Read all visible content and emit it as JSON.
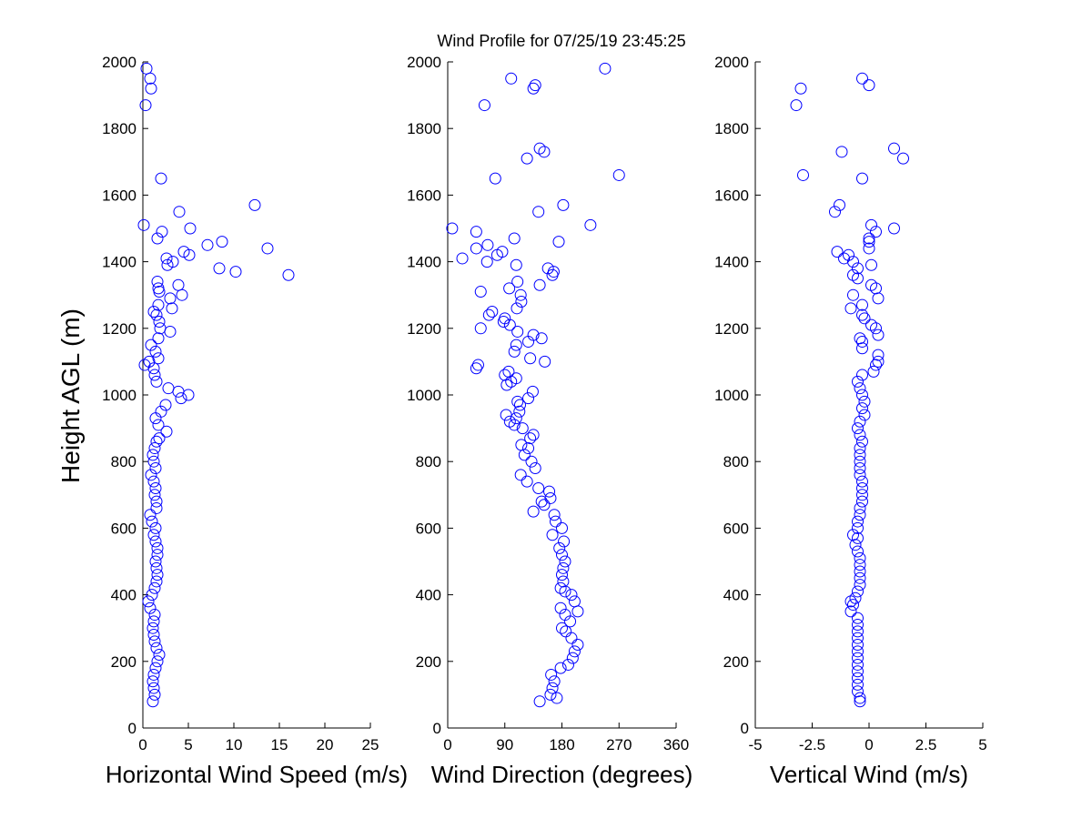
{
  "title": "Wind Profile for  07/25/19 23:45:25",
  "ylabel": "Height AGL (m)",
  "colors": {
    "marker": "#0000ff",
    "axis": "#000000",
    "background": "#ffffff"
  },
  "chart_data": [
    {
      "type": "scatter",
      "xlabel": "Horizontal Wind Speed (m/s)",
      "ylabel": "Height AGL (m)",
      "xlim": [
        0,
        25
      ],
      "ylim": [
        0,
        2000
      ],
      "xticks": [
        0,
        5,
        10,
        15,
        20,
        25
      ],
      "xtick_labels": [
        "0",
        "5",
        "10",
        "15",
        "20",
        "25"
      ],
      "yticks": [
        0,
        200,
        400,
        600,
        800,
        1000,
        1200,
        1400,
        1600,
        1800,
        2000
      ],
      "ytick_labels": [
        "0",
        "200",
        "400",
        "600",
        "800",
        "1000",
        "1200",
        "1400",
        "1600",
        "1800",
        "2000"
      ],
      "marker": "open circle",
      "grid": false,
      "points": [
        [
          1.1,
          80
        ],
        [
          1.3,
          100
        ],
        [
          1.2,
          120
        ],
        [
          1.1,
          140
        ],
        [
          1.2,
          160
        ],
        [
          1.4,
          180
        ],
        [
          1.6,
          200
        ],
        [
          1.8,
          220
        ],
        [
          1.5,
          240
        ],
        [
          1.3,
          260
        ],
        [
          1.2,
          280
        ],
        [
          1.1,
          300
        ],
        [
          1.2,
          320
        ],
        [
          1.3,
          340
        ],
        [
          0.8,
          360
        ],
        [
          0.6,
          380
        ],
        [
          1.0,
          400
        ],
        [
          1.3,
          420
        ],
        [
          1.5,
          440
        ],
        [
          1.6,
          460
        ],
        [
          1.5,
          480
        ],
        [
          1.4,
          500
        ],
        [
          1.6,
          520
        ],
        [
          1.6,
          540
        ],
        [
          1.4,
          560
        ],
        [
          1.2,
          580
        ],
        [
          1.4,
          600
        ],
        [
          1.0,
          620
        ],
        [
          0.8,
          640
        ],
        [
          1.5,
          660
        ],
        [
          1.5,
          680
        ],
        [
          1.3,
          700
        ],
        [
          1.4,
          720
        ],
        [
          1.2,
          740
        ],
        [
          0.9,
          760
        ],
        [
          1.4,
          780
        ],
        [
          1.2,
          800
        ],
        [
          1.1,
          820
        ],
        [
          1.3,
          840
        ],
        [
          1.5,
          860
        ],
        [
          1.8,
          870
        ],
        [
          2.6,
          890
        ],
        [
          1.7,
          910
        ],
        [
          1.4,
          930
        ],
        [
          2.0,
          950
        ],
        [
          2.5,
          970
        ],
        [
          4.2,
          990
        ],
        [
          5.0,
          1000
        ],
        [
          3.9,
          1010
        ],
        [
          2.8,
          1020
        ],
        [
          1.5,
          1040
        ],
        [
          1.3,
          1060
        ],
        [
          1.2,
          1080
        ],
        [
          0.2,
          1090
        ],
        [
          0.7,
          1100
        ],
        [
          1.7,
          1110
        ],
        [
          1.4,
          1130
        ],
        [
          0.9,
          1150
        ],
        [
          1.7,
          1170
        ],
        [
          3.0,
          1190
        ],
        [
          1.9,
          1200
        ],
        [
          1.8,
          1220
        ],
        [
          1.5,
          1240
        ],
        [
          1.2,
          1250
        ],
        [
          3.2,
          1260
        ],
        [
          1.7,
          1270
        ],
        [
          3.0,
          1290
        ],
        [
          4.3,
          1300
        ],
        [
          1.8,
          1310
        ],
        [
          1.7,
          1320
        ],
        [
          3.9,
          1330
        ],
        [
          1.6,
          1340
        ],
        [
          16.0,
          1360
        ],
        [
          10.2,
          1370
        ],
        [
          8.4,
          1380
        ],
        [
          2.7,
          1390
        ],
        [
          3.3,
          1400
        ],
        [
          2.6,
          1410
        ],
        [
          5.1,
          1420
        ],
        [
          4.5,
          1430
        ],
        [
          13.7,
          1440
        ],
        [
          7.1,
          1450
        ],
        [
          8.7,
          1460
        ],
        [
          1.6,
          1470
        ],
        [
          2.1,
          1490
        ],
        [
          5.2,
          1500
        ],
        [
          0.1,
          1510
        ],
        [
          4.0,
          1550
        ],
        [
          12.3,
          1570
        ],
        [
          2.0,
          1650
        ],
        [
          0.3,
          1870
        ],
        [
          0.9,
          1920
        ],
        [
          0.8,
          1950
        ],
        [
          0.4,
          1980
        ]
      ]
    },
    {
      "type": "scatter",
      "xlabel": "Wind Direction (degrees)",
      "ylabel": "",
      "xlim": [
        0,
        360
      ],
      "ylim": [
        0,
        2000
      ],
      "xticks": [
        0,
        90,
        180,
        270,
        360
      ],
      "xtick_labels": [
        "0",
        "90",
        "180",
        "270",
        "360"
      ],
      "yticks": [
        0,
        200,
        400,
        600,
        800,
        1000,
        1200,
        1400,
        1600,
        1800,
        2000
      ],
      "ytick_labels": [
        "0",
        "200",
        "400",
        "600",
        "800",
        "1000",
        "1200",
        "1400",
        "1600",
        "1800",
        "2000"
      ],
      "marker": "open circle",
      "grid": false,
      "points": [
        [
          145,
          80
        ],
        [
          172,
          90
        ],
        [
          162,
          100
        ],
        [
          165,
          120
        ],
        [
          168,
          140
        ],
        [
          163,
          160
        ],
        [
          178,
          180
        ],
        [
          190,
          190
        ],
        [
          197,
          210
        ],
        [
          200,
          230
        ],
        [
          205,
          250
        ],
        [
          195,
          270
        ],
        [
          186,
          290
        ],
        [
          180,
          300
        ],
        [
          193,
          320
        ],
        [
          185,
          340
        ],
        [
          205,
          350
        ],
        [
          178,
          360
        ],
        [
          200,
          380
        ],
        [
          195,
          400
        ],
        [
          185,
          410
        ],
        [
          178,
          420
        ],
        [
          182,
          440
        ],
        [
          180,
          460
        ],
        [
          182,
          480
        ],
        [
          185,
          500
        ],
        [
          180,
          520
        ],
        [
          176,
          540
        ],
        [
          183,
          560
        ],
        [
          165,
          580
        ],
        [
          180,
          600
        ],
        [
          170,
          620
        ],
        [
          168,
          640
        ],
        [
          135,
          650
        ],
        [
          152,
          670
        ],
        [
          148,
          680
        ],
        [
          162,
          690
        ],
        [
          160,
          710
        ],
        [
          143,
          720
        ],
        [
          125,
          740
        ],
        [
          115,
          760
        ],
        [
          138,
          780
        ],
        [
          132,
          800
        ],
        [
          121,
          820
        ],
        [
          127,
          840
        ],
        [
          116,
          850
        ],
        [
          130,
          870
        ],
        [
          135,
          880
        ],
        [
          118,
          900
        ],
        [
          105,
          910
        ],
        [
          98,
          920
        ],
        [
          108,
          930
        ],
        [
          92,
          940
        ],
        [
          113,
          950
        ],
        [
          114,
          970
        ],
        [
          110,
          980
        ],
        [
          127,
          990
        ],
        [
          134,
          1010
        ],
        [
          93,
          1030
        ],
        [
          100,
          1040
        ],
        [
          108,
          1050
        ],
        [
          90,
          1060
        ],
        [
          96,
          1070
        ],
        [
          45,
          1080
        ],
        [
          48,
          1090
        ],
        [
          153,
          1100
        ],
        [
          130,
          1110
        ],
        [
          105,
          1130
        ],
        [
          108,
          1150
        ],
        [
          127,
          1160
        ],
        [
          148,
          1170
        ],
        [
          135,
          1180
        ],
        [
          110,
          1190
        ],
        [
          52,
          1200
        ],
        [
          98,
          1210
        ],
        [
          88,
          1220
        ],
        [
          90,
          1230
        ],
        [
          65,
          1240
        ],
        [
          70,
          1250
        ],
        [
          109,
          1260
        ],
        [
          116,
          1280
        ],
        [
          115,
          1300
        ],
        [
          52,
          1310
        ],
        [
          97,
          1320
        ],
        [
          110,
          1340
        ],
        [
          145,
          1330
        ],
        [
          165,
          1360
        ],
        [
          167,
          1370
        ],
        [
          158,
          1380
        ],
        [
          108,
          1390
        ],
        [
          62,
          1400
        ],
        [
          23,
          1410
        ],
        [
          78,
          1420
        ],
        [
          86,
          1430
        ],
        [
          45,
          1440
        ],
        [
          63,
          1450
        ],
        [
          175,
          1460
        ],
        [
          105,
          1470
        ],
        [
          45,
          1490
        ],
        [
          7,
          1500
        ],
        [
          225,
          1510
        ],
        [
          143,
          1550
        ],
        [
          182,
          1570
        ],
        [
          75,
          1650
        ],
        [
          270,
          1660
        ],
        [
          125,
          1710
        ],
        [
          152,
          1730
        ],
        [
          145,
          1740
        ],
        [
          58,
          1870
        ],
        [
          135,
          1920
        ],
        [
          138,
          1930
        ],
        [
          100,
          1950
        ],
        [
          248,
          1980
        ]
      ]
    },
    {
      "type": "scatter",
      "xlabel": "Vertical Wind (m/s)",
      "ylabel": "",
      "xlim": [
        -5,
        5
      ],
      "ylim": [
        0,
        2000
      ],
      "xticks": [
        -5,
        -2.5,
        0,
        2.5,
        5
      ],
      "xtick_labels": [
        "-5",
        "-2.5",
        "0",
        "2.5",
        "5"
      ],
      "yticks": [
        0,
        200,
        400,
        600,
        800,
        1000,
        1200,
        1400,
        1600,
        1800,
        2000
      ],
      "ytick_labels": [
        "0",
        "200",
        "400",
        "600",
        "800",
        "1000",
        "1200",
        "1400",
        "1600",
        "1800",
        "2000"
      ],
      "marker": "open circle",
      "grid": false,
      "points": [
        [
          -0.4,
          80
        ],
        [
          -0.4,
          90
        ],
        [
          -0.5,
          110
        ],
        [
          -0.5,
          130
        ],
        [
          -0.5,
          150
        ],
        [
          -0.5,
          170
        ],
        [
          -0.5,
          190
        ],
        [
          -0.5,
          210
        ],
        [
          -0.5,
          230
        ],
        [
          -0.5,
          250
        ],
        [
          -0.5,
          270
        ],
        [
          -0.5,
          290
        ],
        [
          -0.5,
          310
        ],
        [
          -0.5,
          330
        ],
        [
          -0.8,
          350
        ],
        [
          -0.7,
          370
        ],
        [
          -0.8,
          380
        ],
        [
          -0.6,
          390
        ],
        [
          -0.5,
          410
        ],
        [
          -0.4,
          430
        ],
        [
          -0.4,
          450
        ],
        [
          -0.4,
          470
        ],
        [
          -0.4,
          490
        ],
        [
          -0.4,
          510
        ],
        [
          -0.5,
          530
        ],
        [
          -0.6,
          550
        ],
        [
          -0.5,
          570
        ],
        [
          -0.7,
          580
        ],
        [
          -0.5,
          600
        ],
        [
          -0.5,
          620
        ],
        [
          -0.4,
          640
        ],
        [
          -0.4,
          660
        ],
        [
          -0.3,
          680
        ],
        [
          -0.3,
          700
        ],
        [
          -0.3,
          720
        ],
        [
          -0.3,
          740
        ],
        [
          -0.4,
          760
        ],
        [
          -0.4,
          780
        ],
        [
          -0.4,
          800
        ],
        [
          -0.4,
          820
        ],
        [
          -0.4,
          840
        ],
        [
          -0.3,
          860
        ],
        [
          -0.4,
          880
        ],
        [
          -0.5,
          900
        ],
        [
          -0.4,
          920
        ],
        [
          -0.2,
          940
        ],
        [
          -0.3,
          960
        ],
        [
          -0.2,
          980
        ],
        [
          -0.3,
          1000
        ],
        [
          -0.4,
          1020
        ],
        [
          -0.5,
          1040
        ],
        [
          -0.3,
          1060
        ],
        [
          0.2,
          1070
        ],
        [
          0.3,
          1090
        ],
        [
          0.4,
          1100
        ],
        [
          0.4,
          1120
        ],
        [
          -0.3,
          1140
        ],
        [
          -0.3,
          1160
        ],
        [
          -0.4,
          1170
        ],
        [
          0.4,
          1180
        ],
        [
          0.3,
          1200
        ],
        [
          0.1,
          1210
        ],
        [
          -0.2,
          1230
        ],
        [
          -0.3,
          1240
        ],
        [
          -0.8,
          1260
        ],
        [
          -0.3,
          1270
        ],
        [
          0.4,
          1290
        ],
        [
          -0.7,
          1300
        ],
        [
          0.3,
          1320
        ],
        [
          0.1,
          1330
        ],
        [
          -0.5,
          1350
        ],
        [
          -0.7,
          1360
        ],
        [
          -0.5,
          1380
        ],
        [
          0.1,
          1390
        ],
        [
          -0.7,
          1400
        ],
        [
          -1.1,
          1410
        ],
        [
          -0.9,
          1420
        ],
        [
          -1.4,
          1430
        ],
        [
          0.0,
          1440
        ],
        [
          0.0,
          1460
        ],
        [
          0.0,
          1470
        ],
        [
          0.3,
          1490
        ],
        [
          1.1,
          1500
        ],
        [
          0.1,
          1510
        ],
        [
          -1.5,
          1550
        ],
        [
          -1.3,
          1570
        ],
        [
          -0.3,
          1650
        ],
        [
          -2.9,
          1660
        ],
        [
          1.5,
          1710
        ],
        [
          -1.2,
          1730
        ],
        [
          1.1,
          1740
        ],
        [
          -3.2,
          1870
        ],
        [
          -3.0,
          1920
        ],
        [
          0.0,
          1930
        ],
        [
          -0.3,
          1950
        ]
      ]
    }
  ]
}
